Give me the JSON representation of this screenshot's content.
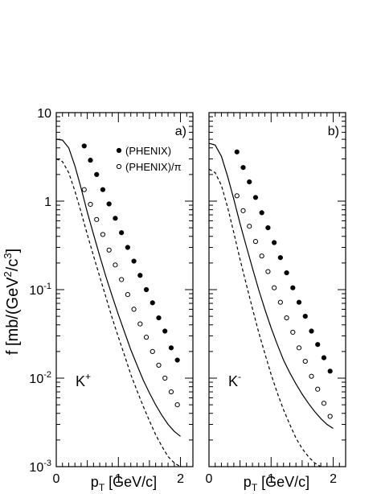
{
  "figure": {
    "ylabel_main": "f [mb/(GeV",
    "ylabel_sup1": "2",
    "ylabel_mid": "/c",
    "ylabel_sup2": "3",
    "ylabel_end": "]",
    "xlabel_main": "p",
    "xlabel_sub": "T",
    "xlabel_unit": " [GeV/c]",
    "ytick_labels": [
      {
        "base": "10",
        "exp": "-3",
        "value": 0.001
      },
      {
        "base": "10",
        "exp": "-2",
        "value": 0.01
      },
      {
        "base": "10",
        "exp": "-1",
        "value": 0.1
      },
      {
        "base": "1",
        "exp": "",
        "value": 1
      },
      {
        "base": "10",
        "exp": "",
        "value": 10
      }
    ],
    "xtick_labels": [
      "0",
      "1",
      "2"
    ]
  },
  "chart_data": [
    {
      "type": "scatter",
      "panel_label": "a)",
      "particle": "K",
      "particle_sup": "+",
      "xlim": [
        0,
        2.2
      ],
      "ylim": [
        0.001,
        10
      ],
      "yscale": "log",
      "legend": [
        {
          "symbol": "filled-circle",
          "label": "(PHENIX)"
        },
        {
          "symbol": "open-circle",
          "label": "(PHENIX)/π"
        }
      ],
      "series": [
        {
          "name": "(PHENIX)",
          "marker": "filled",
          "x": [
            0.45,
            0.55,
            0.65,
            0.75,
            0.85,
            0.95,
            1.05,
            1.15,
            1.25,
            1.35,
            1.45,
            1.55,
            1.65,
            1.75,
            1.85,
            1.95
          ],
          "y": [
            4.2,
            2.9,
            2.0,
            1.35,
            0.93,
            0.64,
            0.44,
            0.3,
            0.21,
            0.145,
            0.1,
            0.071,
            0.048,
            0.034,
            0.022,
            0.016
          ]
        },
        {
          "name": "(PHENIX)/π",
          "marker": "open",
          "x": [
            0.45,
            0.55,
            0.65,
            0.75,
            0.85,
            0.95,
            1.05,
            1.15,
            1.25,
            1.35,
            1.45,
            1.55,
            1.65,
            1.75,
            1.85,
            1.95
          ],
          "y": [
            1.35,
            0.92,
            0.62,
            0.42,
            0.28,
            0.19,
            0.13,
            0.088,
            0.06,
            0.041,
            0.029,
            0.02,
            0.014,
            0.01,
            0.007,
            0.005
          ]
        },
        {
          "name": "",
          "style": "solid-line",
          "x": [
            0,
            0.1,
            0.2,
            0.3,
            0.4,
            0.5,
            0.6,
            0.7,
            0.8,
            0.9,
            1.0,
            1.1,
            1.2,
            1.3,
            1.4,
            1.5,
            1.6,
            1.7,
            1.8,
            1.9,
            2.0
          ],
          "y": [
            5.0,
            4.9,
            4.0,
            2.5,
            1.4,
            0.75,
            0.42,
            0.24,
            0.14,
            0.085,
            0.052,
            0.033,
            0.021,
            0.014,
            0.0095,
            0.0068,
            0.005,
            0.0038,
            0.003,
            0.0025,
            0.0022
          ]
        },
        {
          "name": "",
          "style": "dashed-line",
          "x": [
            0,
            0.1,
            0.2,
            0.3,
            0.4,
            0.5,
            0.6,
            0.7,
            0.8,
            0.9,
            1.0,
            1.1,
            1.2,
            1.3,
            1.4,
            1.5,
            1.6,
            1.7,
            1.8,
            1.9,
            2.0
          ],
          "y": [
            3.0,
            2.8,
            2.1,
            1.3,
            0.75,
            0.42,
            0.24,
            0.14,
            0.082,
            0.048,
            0.029,
            0.018,
            0.011,
            0.0072,
            0.0048,
            0.0033,
            0.0023,
            0.0017,
            0.0013,
            0.0011,
            0.001
          ]
        }
      ]
    },
    {
      "type": "scatter",
      "panel_label": "b)",
      "particle": "K",
      "particle_sup": "-",
      "xlim": [
        0,
        2.2
      ],
      "ylim": [
        0.001,
        10
      ],
      "yscale": "log",
      "legend": [],
      "series": [
        {
          "name": "(PHENIX)",
          "marker": "filled",
          "x": [
            0.45,
            0.55,
            0.65,
            0.75,
            0.85,
            0.95,
            1.05,
            1.15,
            1.25,
            1.35,
            1.45,
            1.55,
            1.65,
            1.75,
            1.85,
            1.95
          ],
          "y": [
            3.6,
            2.4,
            1.65,
            1.1,
            0.74,
            0.5,
            0.34,
            0.23,
            0.155,
            0.105,
            0.072,
            0.05,
            0.034,
            0.024,
            0.017,
            0.012
          ]
        },
        {
          "name": "(PHENIX)/π",
          "marker": "open",
          "x": [
            0.45,
            0.55,
            0.65,
            0.75,
            0.85,
            0.95,
            1.05,
            1.15,
            1.25,
            1.35,
            1.45,
            1.55,
            1.65,
            1.75,
            1.85,
            1.95
          ],
          "y": [
            1.15,
            0.78,
            0.52,
            0.35,
            0.24,
            0.16,
            0.105,
            0.072,
            0.048,
            0.033,
            0.022,
            0.0155,
            0.0105,
            0.0075,
            0.0052,
            0.0037
          ]
        },
        {
          "name": "",
          "style": "solid-line",
          "x": [
            0,
            0.1,
            0.2,
            0.3,
            0.4,
            0.5,
            0.6,
            0.7,
            0.8,
            0.9,
            1.0,
            1.1,
            1.2,
            1.3,
            1.4,
            1.5,
            1.6,
            1.7,
            1.8,
            1.9,
            2.0
          ],
          "y": [
            4.5,
            4.3,
            3.2,
            1.9,
            1.05,
            0.56,
            0.31,
            0.175,
            0.1,
            0.06,
            0.037,
            0.024,
            0.016,
            0.0115,
            0.0086,
            0.0066,
            0.0052,
            0.0042,
            0.0035,
            0.003,
            0.0027
          ]
        },
        {
          "name": "",
          "style": "dashed-line",
          "x": [
            0,
            0.1,
            0.2,
            0.3,
            0.4,
            0.5,
            0.6,
            0.7,
            0.8,
            0.9,
            1.0,
            1.1,
            1.2,
            1.3,
            1.4,
            1.5,
            1.6,
            1.7,
            1.8
          ],
          "y": [
            2.3,
            2.1,
            1.5,
            0.85,
            0.44,
            0.22,
            0.115,
            0.061,
            0.033,
            0.019,
            0.011,
            0.0068,
            0.0044,
            0.003,
            0.0021,
            0.0016,
            0.0013,
            0.0011,
            0.001
          ]
        }
      ]
    }
  ]
}
